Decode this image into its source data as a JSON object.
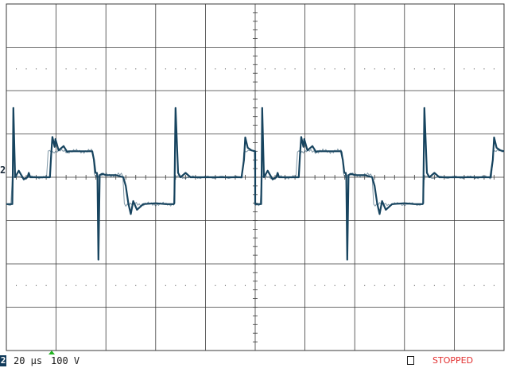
{
  "status_bar": {
    "channel": "2",
    "timebase": "20 μs",
    "volts_per_div": "100 V",
    "run_state": "STOPPED"
  },
  "colors": {
    "trace": "#17445f",
    "grid": "#3a3a3a",
    "background": "#ffffff",
    "stopped": "#e23030",
    "trigger_marker": "#22b422"
  },
  "chart_data": {
    "type": "line",
    "title": "",
    "xlabel": "",
    "ylabel": "",
    "x_divisions": 10,
    "y_divisions": 8,
    "x_unit_per_div": "20 μs",
    "y_unit_per_div": "100 V",
    "channel_marker_label": "2",
    "xlim": [
      0,
      200
    ],
    "ylim": [
      -400,
      400
    ],
    "grid": true,
    "series": [
      {
        "x": [
          0,
          2.4,
          2.6,
          2.8,
          3.5,
          5,
          7,
          8.5,
          9.0,
          9.6,
          10.5,
          12,
          16,
          17,
          17.5,
          18,
          18.5,
          19.4,
          19.7,
          21,
          23,
          24.5,
          25,
          26,
          27,
          28,
          29.3,
          30,
          31,
          32,
          33,
          34.5,
          35.2,
          35.8,
          36.4,
          36.6,
          37.0,
          37.5,
          38.5,
          40,
          44,
          47,
          48,
          49,
          50,
          51,
          52.5,
          55,
          60,
          64,
          65,
          65.8,
          66.6,
          67.3,
          67.5,
          68,
          69,
          70,
          72,
          74,
          76,
          78,
          80,
          85,
          90,
          94.5,
          95.5,
          96,
          97,
          98.5,
          100
        ],
        "y": [
          -62,
          -62,
          10,
          160,
          0,
          15,
          -5,
          0,
          10,
          0,
          0,
          0,
          0,
          0,
          0,
          50,
          93,
          70,
          88,
          62,
          72,
          58,
          60,
          60,
          60,
          60,
          60,
          60,
          60,
          60,
          60,
          60,
          40,
          10,
          10,
          0,
          -190,
          5,
          8,
          5,
          5,
          0,
          -20,
          -60,
          -85,
          -55,
          -75,
          -62,
          -60,
          -62,
          -62,
          -62,
          -62,
          -62,
          -60,
          160,
          10,
          0,
          10,
          0,
          0,
          0,
          0,
          0,
          0,
          0,
          40,
          92,
          68,
          62,
          60
        ]
      }
    ]
  }
}
